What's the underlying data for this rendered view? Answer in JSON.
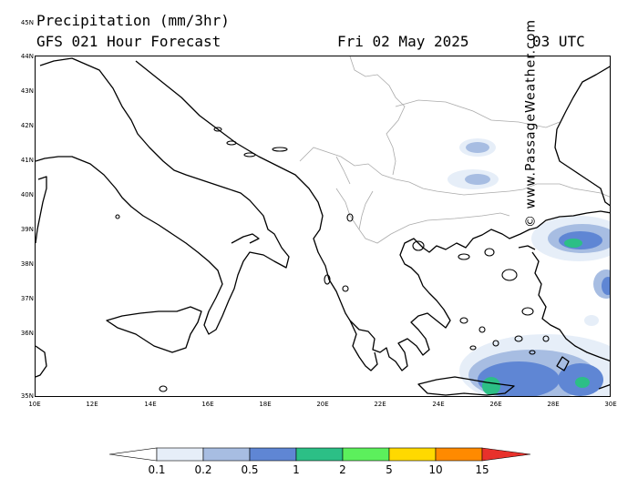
{
  "header": {
    "title": "Precipitation (mm/3hr)",
    "subtitle": "GFS 021 Hour Forecast",
    "date": "Fri 02 May 2025",
    "time": "03 UTC"
  },
  "map": {
    "lat_labels": [
      "45N",
      "44N",
      "43N",
      "42N",
      "41N",
      "40N",
      "39N",
      "38N",
      "37N",
      "36N",
      "35N"
    ],
    "lon_labels": [
      "10E",
      "12E",
      "14E",
      "16E",
      "18E",
      "20E",
      "22E",
      "24E",
      "26E",
      "28E",
      "30E"
    ],
    "land_color": "#ffffff",
    "coast_color": "#000000",
    "border_color": "#aaaaaa"
  },
  "copyright": "© www.PassageWeather.com",
  "colorbar": {
    "labels": [
      "0.1",
      "0.2",
      "0.5",
      "1",
      "2",
      "5",
      "10",
      "15"
    ],
    "colors": [
      "#ffffff",
      "#e6eef8",
      "#a7bde2",
      "#5f86d4",
      "#2cbf86",
      "#5cf05c",
      "#ffd900",
      "#ff8a00",
      "#e8312b"
    ]
  }
}
